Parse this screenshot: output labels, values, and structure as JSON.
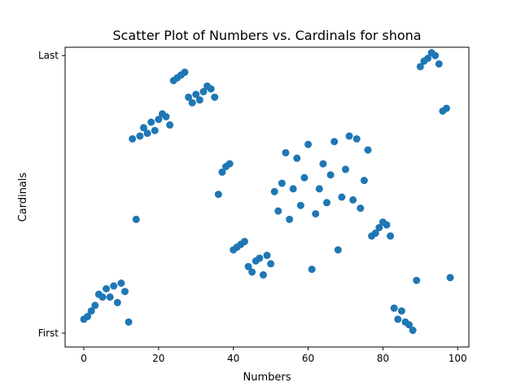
{
  "chart_data": {
    "type": "scatter",
    "title": "Scatter Plot of Numbers vs. Cardinals for shona",
    "xlabel": "Numbers",
    "ylabel": "Cardinals",
    "xlim": [
      -5,
      103
    ],
    "ylim": [
      -5,
      103
    ],
    "xticks": [
      0,
      20,
      40,
      60,
      80,
      100
    ],
    "xtick_labels": [
      "0",
      "20",
      "40",
      "60",
      "80",
      "100"
    ],
    "yticks": [
      0,
      100
    ],
    "ytick_labels": [
      "First",
      "Last"
    ],
    "grid": false,
    "color": "#1f77b4",
    "points": [
      [
        0,
        5
      ],
      [
        1,
        6
      ],
      [
        2,
        8
      ],
      [
        3,
        10
      ],
      [
        4,
        14
      ],
      [
        5,
        13
      ],
      [
        6,
        16
      ],
      [
        7,
        13
      ],
      [
        8,
        17
      ],
      [
        9,
        11
      ],
      [
        10,
        18
      ],
      [
        11,
        15
      ],
      [
        12,
        4
      ],
      [
        13,
        70
      ],
      [
        14,
        41
      ],
      [
        15,
        71
      ],
      [
        16,
        74
      ],
      [
        17,
        72
      ],
      [
        18,
        76
      ],
      [
        19,
        73
      ],
      [
        20,
        77
      ],
      [
        21,
        79
      ],
      [
        22,
        78
      ],
      [
        23,
        75
      ],
      [
        24,
        91
      ],
      [
        25,
        92
      ],
      [
        26,
        93
      ],
      [
        27,
        94
      ],
      [
        28,
        85
      ],
      [
        29,
        83
      ],
      [
        30,
        86
      ],
      [
        31,
        84
      ],
      [
        32,
        87
      ],
      [
        33,
        89
      ],
      [
        34,
        88
      ],
      [
        35,
        85
      ],
      [
        36,
        50
      ],
      [
        37,
        58
      ],
      [
        38,
        60
      ],
      [
        39,
        61
      ],
      [
        40,
        30
      ],
      [
        41,
        31
      ],
      [
        42,
        32
      ],
      [
        43,
        33
      ],
      [
        44,
        24
      ],
      [
        45,
        22
      ],
      [
        46,
        26
      ],
      [
        47,
        27
      ],
      [
        48,
        21
      ],
      [
        49,
        28
      ],
      [
        50,
        25
      ],
      [
        51,
        51
      ],
      [
        52,
        44
      ],
      [
        53,
        54
      ],
      [
        54,
        65
      ],
      [
        55,
        41
      ],
      [
        56,
        52
      ],
      [
        57,
        63
      ],
      [
        58,
        46
      ],
      [
        59,
        56
      ],
      [
        60,
        68
      ],
      [
        61,
        23
      ],
      [
        62,
        43
      ],
      [
        63,
        52
      ],
      [
        64,
        61
      ],
      [
        65,
        47
      ],
      [
        66,
        57
      ],
      [
        67,
        69
      ],
      [
        68,
        30
      ],
      [
        69,
        49
      ],
      [
        70,
        59
      ],
      [
        71,
        71
      ],
      [
        72,
        48
      ],
      [
        73,
        70
      ],
      [
        74,
        45
      ],
      [
        75,
        55
      ],
      [
        76,
        66
      ],
      [
        77,
        35
      ],
      [
        78,
        36
      ],
      [
        79,
        38
      ],
      [
        80,
        40
      ],
      [
        81,
        39
      ],
      [
        82,
        35
      ],
      [
        83,
        9
      ],
      [
        84,
        5
      ],
      [
        85,
        8
      ],
      [
        86,
        4
      ],
      [
        87,
        3
      ],
      [
        88,
        1
      ],
      [
        89,
        19
      ],
      [
        90,
        96
      ],
      [
        91,
        98
      ],
      [
        92,
        99
      ],
      [
        93,
        101
      ],
      [
        94,
        100
      ],
      [
        95,
        97
      ],
      [
        96,
        80
      ],
      [
        97,
        81
      ],
      [
        98,
        20
      ]
    ]
  }
}
